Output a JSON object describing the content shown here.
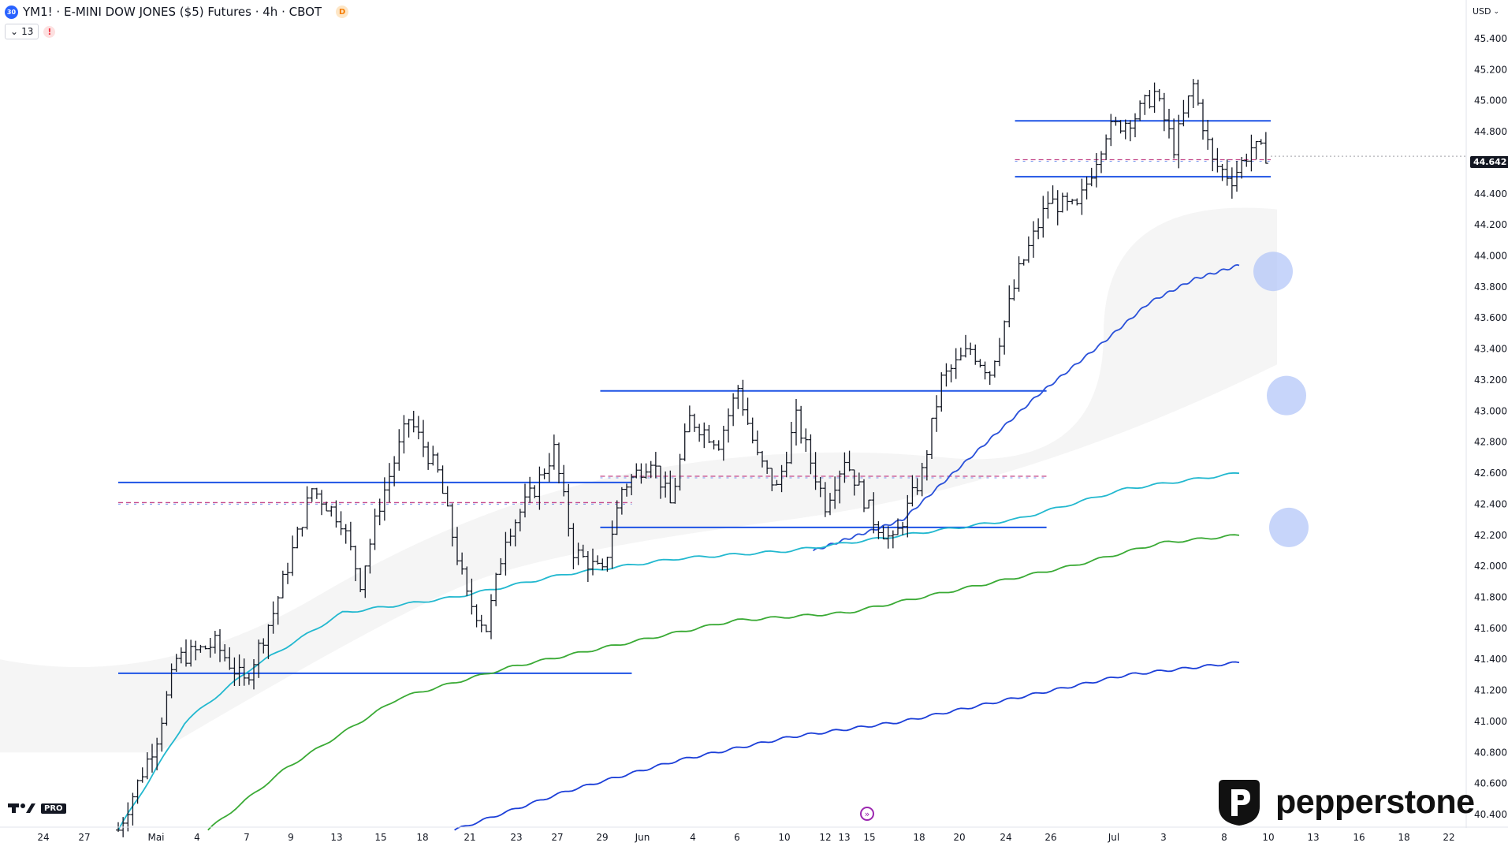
{
  "header": {
    "symbol_badge": "30",
    "title": "YM1! · E-MINI DOW JONES ($5) Futures · 4h · CBOT",
    "delay_badge": "D",
    "indicator_count": "13",
    "warning": "!",
    "currency": "USD"
  },
  "logos": {
    "tv_pro": "PRO",
    "broker": "pepperstone"
  },
  "colors": {
    "candle": "#131722",
    "level_line": "#1e53e5",
    "ema_blue": "#2950d9",
    "ema_cyan": "#22b8cf",
    "ema_green": "#3aaa35",
    "ema_darkblue": "#1c3fd8",
    "mid_dash": "#c44a8b",
    "marker": "#a9bff7"
  },
  "chart_data": {
    "type": "ohlc",
    "last_price_label": "44.642",
    "last_price": 44642,
    "ylim": [
      40300,
      45600
    ],
    "y_ticks": [
      "45.400",
      "45.200",
      "45.000",
      "44.800",
      "44.600",
      "44.400",
      "44.200",
      "44.000",
      "43.800",
      "43.600",
      "43.400",
      "43.200",
      "43.000",
      "42.800",
      "42.600",
      "42.400",
      "42.200",
      "42.000",
      "41.800",
      "41.600",
      "41.400",
      "41.200",
      "41.000",
      "40.800",
      "40.600",
      "40.400"
    ],
    "x_ticks": [
      "24",
      "27",
      "Mai",
      "4",
      "7",
      "9",
      "13",
      "15",
      "18",
      "21",
      "23",
      "27",
      "29",
      "Jun",
      "4",
      "6",
      "10",
      "12",
      "13",
      "15",
      "18",
      "20",
      "24",
      "26",
      "Jul",
      "3",
      "8",
      "10",
      "13",
      "16",
      "18",
      "22"
    ],
    "waypoints": [
      [
        0,
        40300
      ],
      [
        8,
        40900
      ],
      [
        12,
        41400
      ],
      [
        20,
        41500
      ],
      [
        26,
        41250
      ],
      [
        32,
        41700
      ],
      [
        40,
        42500
      ],
      [
        46,
        42300
      ],
      [
        50,
        41900
      ],
      [
        54,
        42400
      ],
      [
        60,
        42950
      ],
      [
        66,
        42600
      ],
      [
        72,
        41800
      ],
      [
        76,
        41600
      ],
      [
        80,
        42200
      ],
      [
        86,
        42500
      ],
      [
        90,
        42750
      ],
      [
        94,
        42100
      ],
      [
        100,
        41950
      ],
      [
        104,
        42500
      ],
      [
        110,
        42700
      ],
      [
        114,
        42400
      ],
      [
        118,
        42950
      ],
      [
        124,
        42800
      ],
      [
        128,
        43150
      ],
      [
        132,
        42700
      ],
      [
        136,
        42500
      ],
      [
        140,
        42950
      ],
      [
        146,
        42400
      ],
      [
        150,
        42700
      ],
      [
        156,
        42300
      ],
      [
        160,
        42150
      ],
      [
        166,
        42600
      ],
      [
        170,
        43200
      ],
      [
        176,
        43400
      ],
      [
        180,
        43250
      ],
      [
        186,
        43900
      ],
      [
        192,
        44350
      ],
      [
        198,
        44300
      ],
      [
        204,
        44800
      ],
      [
        210,
        44900
      ],
      [
        214,
        45050
      ],
      [
        218,
        44700
      ],
      [
        222,
        45100
      ],
      [
        226,
        44600
      ],
      [
        230,
        44500
      ],
      [
        234,
        44700
      ],
      [
        238,
        44640
      ]
    ],
    "levels": [
      {
        "y": 42540,
        "from": 0,
        "to": 0.43
      },
      {
        "y": 41310,
        "from": 0,
        "to": 0.43
      },
      {
        "y": 43130,
        "from": 0.43,
        "to": 0.8
      },
      {
        "y": 42250,
        "from": 0.43,
        "to": 0.8
      },
      {
        "y": 44870,
        "from": 0.8,
        "to": 1.0
      },
      {
        "y": 44510,
        "from": 0.8,
        "to": 1.0
      }
    ],
    "mid_dashes": [
      {
        "y": 42410,
        "from": 0,
        "to": 0.43
      },
      {
        "y": 42580,
        "from": 0.43,
        "to": 0.8
      },
      {
        "y": 44620,
        "from": 0.8,
        "to": 1.0
      }
    ],
    "emas": [
      {
        "color_key": "ema_blue",
        "points": [
          [
            0.62,
            42100
          ],
          [
            0.7,
            42300
          ],
          [
            0.76,
            42700
          ],
          [
            0.82,
            43100
          ],
          [
            0.88,
            43450
          ],
          [
            0.92,
            43700
          ],
          [
            0.96,
            43850
          ],
          [
            1.0,
            43940
          ]
        ]
      },
      {
        "color_key": "ema_cyan",
        "points": [
          [
            0.0,
            40300
          ],
          [
            0.06,
            41000
          ],
          [
            0.12,
            41350
          ],
          [
            0.2,
            41700
          ],
          [
            0.3,
            41800
          ],
          [
            0.4,
            41950
          ],
          [
            0.5,
            42050
          ],
          [
            0.6,
            42100
          ],
          [
            0.7,
            42200
          ],
          [
            0.8,
            42300
          ],
          [
            0.9,
            42500
          ],
          [
            1.0,
            42600
          ]
        ]
      },
      {
        "color_key": "ema_green",
        "points": [
          [
            0.08,
            40300
          ],
          [
            0.15,
            40700
          ],
          [
            0.25,
            41150
          ],
          [
            0.35,
            41350
          ],
          [
            0.45,
            41500
          ],
          [
            0.55,
            41650
          ],
          [
            0.65,
            41700
          ],
          [
            0.75,
            41850
          ],
          [
            0.85,
            42000
          ],
          [
            0.93,
            42150
          ],
          [
            1.0,
            42200
          ]
        ]
      },
      {
        "color_key": "ema_darkblue",
        "points": [
          [
            0.3,
            40300
          ],
          [
            0.4,
            40550
          ],
          [
            0.5,
            40750
          ],
          [
            0.6,
            40900
          ],
          [
            0.7,
            41000
          ],
          [
            0.8,
            41150
          ],
          [
            0.9,
            41300
          ],
          [
            1.0,
            41380
          ]
        ]
      }
    ],
    "markers": [
      43900,
      43100,
      42250
    ]
  }
}
